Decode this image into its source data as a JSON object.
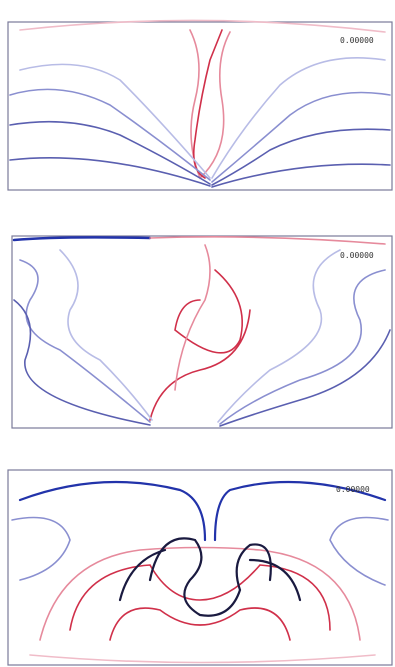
{
  "panels": [
    {
      "label": "0.00000"
    },
    {
      "label": "0.00000"
    },
    {
      "label": "0.00000"
    }
  ]
}
